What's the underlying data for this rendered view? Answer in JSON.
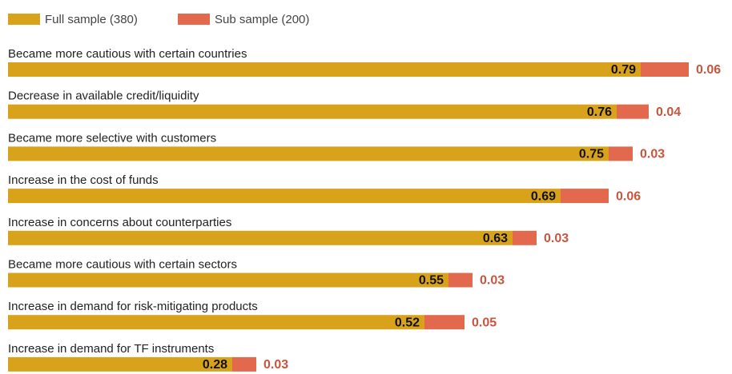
{
  "chart_data": {
    "type": "stacked-barh",
    "categories": [
      "Became more cautious with certain countries",
      "Decrease in available credit/liquidity",
      "Became more selective with customers",
      "Increase in the cost of funds",
      "Increase in concerns about counterparties",
      "Became more cautious with certain sectors",
      "Increase in demand for risk-mitigating products",
      "Increase in demand for TF instruments"
    ],
    "series": [
      {
        "name": "Full sample (380)",
        "color": "#d9a21b",
        "label_color": "#111111",
        "values": [
          0.79,
          0.76,
          0.75,
          0.69,
          0.63,
          0.55,
          0.52,
          0.28
        ]
      },
      {
        "name": "Sub sample (200)",
        "color": "#e2694e",
        "label_color": "#c8553d",
        "values": [
          0.06,
          0.04,
          0.03,
          0.06,
          0.03,
          0.03,
          0.05,
          0.03
        ]
      }
    ]
  }
}
